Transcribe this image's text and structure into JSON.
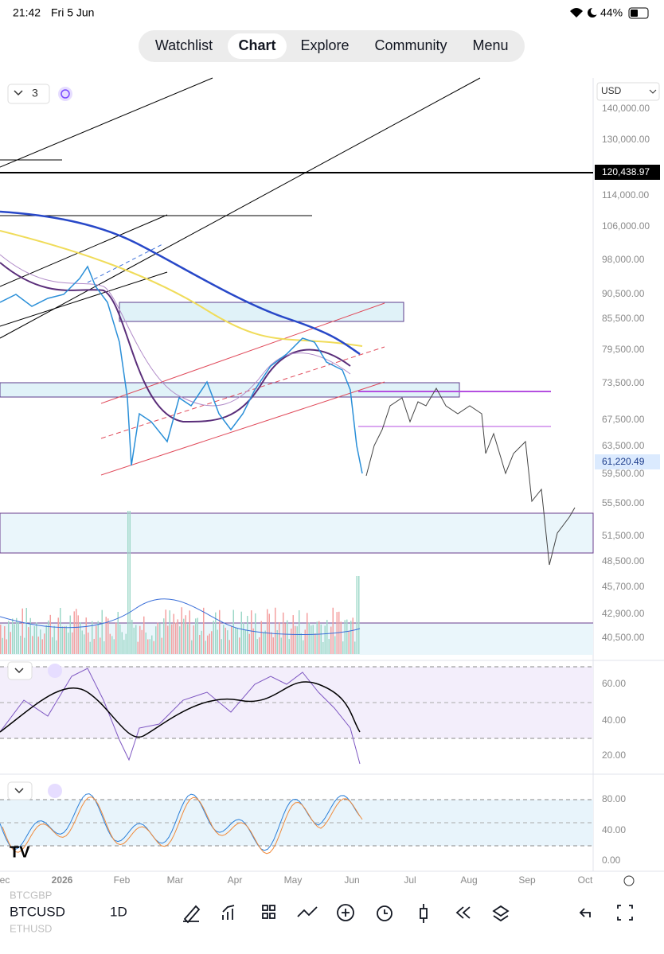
{
  "status_bar": {
    "time": "21:42",
    "date": "Fri 5 Jun",
    "battery": "44%"
  },
  "tabs": [
    "Watchlist",
    "Chart",
    "Explore",
    "Community",
    "Menu"
  ],
  "active_tab": "Chart",
  "chart_toolbar": {
    "layouts": "3"
  },
  "price_axis": {
    "currency": "USD",
    "labels": [
      "140,000.00",
      "130,000.00",
      "114,000.00",
      "106,000.00",
      "98,000.00",
      "90,500.00",
      "85,500.00",
      "79,500.00",
      "73,500.00",
      "67,500.00",
      "63,500.00",
      "59,500.00",
      "55,500.00",
      "51,500.00",
      "48,500.00",
      "45,700.00",
      "42,900.00",
      "40,500.00"
    ],
    "line_price": "120,438.97",
    "last_price": "61,220.49"
  },
  "rsi_axis": [
    "60.00",
    "40.00",
    "20.00"
  ],
  "stoch_axis": [
    "80.00",
    "40.00",
    "0.00"
  ],
  "time_axis": [
    "ec",
    "2026",
    "Feb",
    "Mar",
    "Apr",
    "May",
    "Jun",
    "Jul",
    "Aug",
    "Sep",
    "Oct"
  ],
  "symbols": [
    "BTCGBP",
    "BTCUSD",
    "ETHUSD"
  ],
  "interval": "1D"
}
